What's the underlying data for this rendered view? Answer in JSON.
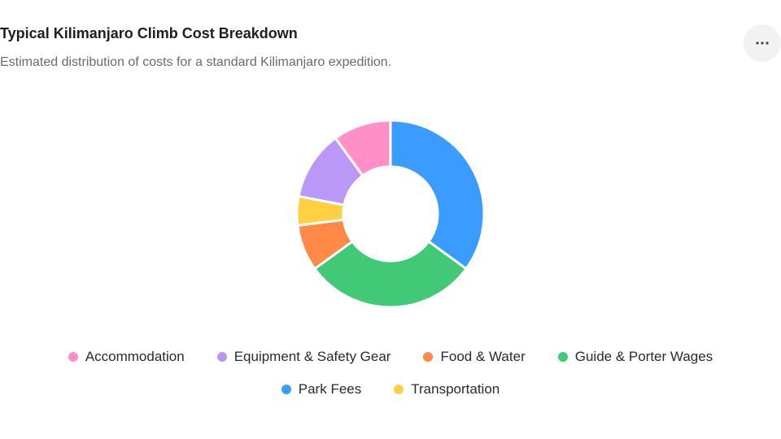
{
  "header": {
    "title": "Typical Kilimanjaro Climb Cost Breakdown",
    "subtitle": "Estimated distribution of costs for a standard Kilimanjaro expedition.",
    "menu_icon": "more-horizontal-icon"
  },
  "chart_data": {
    "type": "pie",
    "variant": "donut",
    "title": "Typical Kilimanjaro Climb Cost Breakdown",
    "subtitle": "Estimated distribution of costs for a standard Kilimanjaro expedition.",
    "legend_position": "bottom",
    "slices": [
      {
        "label": "Park Fees",
        "value": 35,
        "color": "#3b9cff"
      },
      {
        "label": "Guide & Porter Wages",
        "value": 30,
        "color": "#41c977"
      },
      {
        "label": "Food & Water",
        "value": 8,
        "color": "#ff8a47"
      },
      {
        "label": "Transportation",
        "value": 5,
        "color": "#ffd142"
      },
      {
        "label": "Equipment & Safety Gear",
        "value": 12,
        "color": "#bb98f8"
      },
      {
        "label": "Accommodation",
        "value": 10,
        "color": "#ff8fc6"
      }
    ],
    "legend_order": [
      "Accommodation",
      "Equipment & Safety Gear",
      "Food & Water",
      "Guide & Porter Wages",
      "Park Fees",
      "Transportation"
    ]
  }
}
